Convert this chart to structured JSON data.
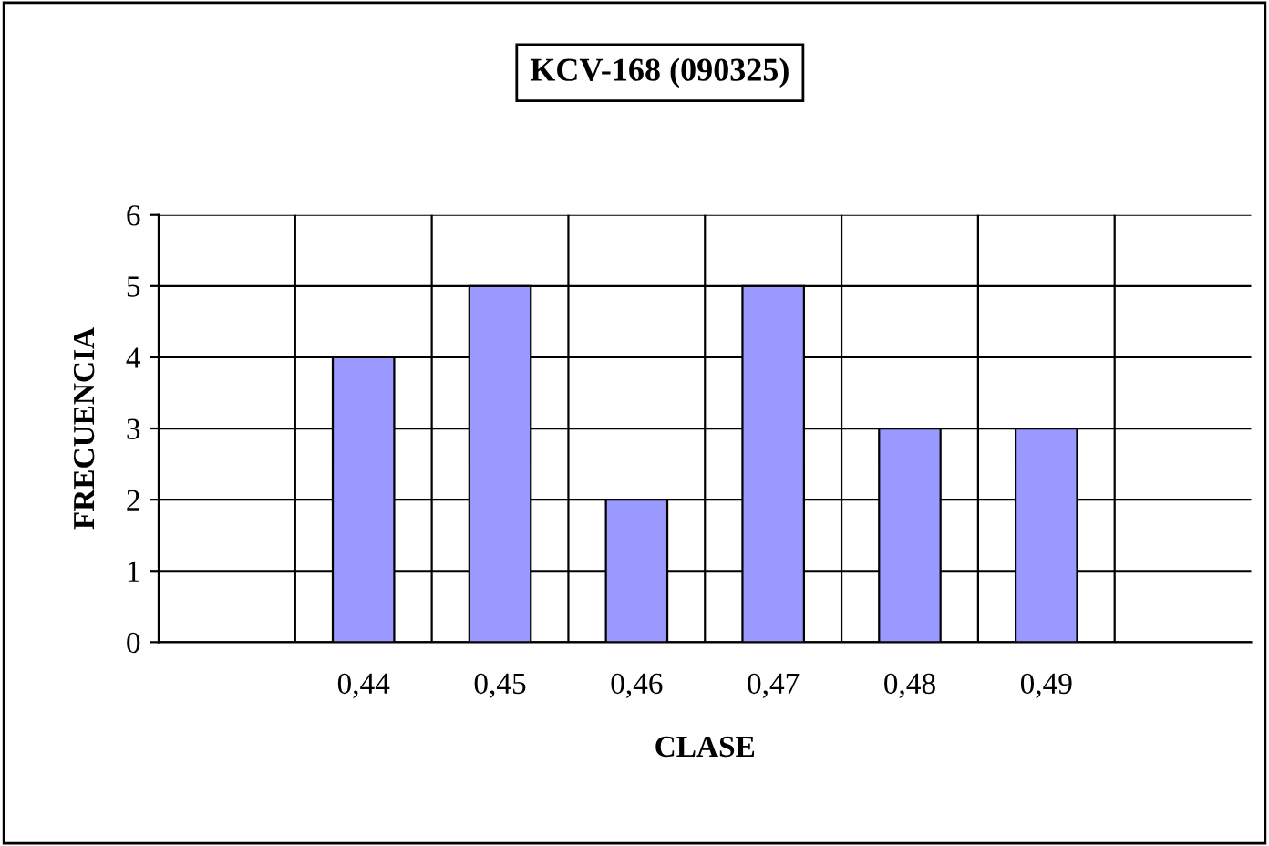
{
  "chart_data": {
    "type": "bar",
    "title": "KCV-168 (090325)",
    "xlabel": "CLASE",
    "ylabel": "FRECUENCIA",
    "categories": [
      null,
      "0,44",
      "0,45",
      "0,46",
      "0,47",
      "0,48",
      "0,49",
      null
    ],
    "values": [
      null,
      4,
      5,
      2,
      5,
      3,
      3,
      null
    ],
    "color": "#9999ff",
    "ylim": [
      0,
      6
    ],
    "yticks": [
      0,
      1,
      2,
      3,
      4,
      5,
      6
    ],
    "grid": true
  }
}
